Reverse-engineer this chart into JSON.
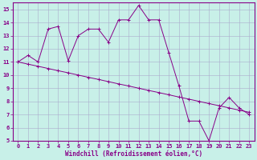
{
  "xlabel": "Windchill (Refroidissement éolien,°C)",
  "ylabel": "",
  "background_color": "#c8f0e8",
  "grid_color": "#aaaacc",
  "line_color": "#880088",
  "xlim": [
    -0.5,
    23.5
  ],
  "ylim": [
    5,
    15.5
  ],
  "xticks": [
    0,
    1,
    2,
    3,
    4,
    5,
    6,
    7,
    8,
    9,
    10,
    11,
    12,
    13,
    14,
    15,
    16,
    17,
    18,
    19,
    20,
    21,
    22,
    23
  ],
  "yticks": [
    5,
    6,
    7,
    8,
    9,
    10,
    11,
    12,
    13,
    14,
    15
  ],
  "curve1_x": [
    0,
    1,
    2,
    3,
    4,
    5,
    6,
    7,
    8,
    9,
    10,
    11,
    12,
    13,
    14,
    15,
    16,
    17,
    18,
    19,
    20,
    21,
    22,
    23
  ],
  "curve1_y": [
    11.0,
    11.5,
    11.0,
    13.5,
    13.7,
    11.1,
    13.0,
    13.5,
    13.5,
    12.5,
    14.2,
    14.2,
    15.3,
    14.2,
    14.2,
    11.7,
    9.2,
    6.5,
    6.5,
    5.0,
    7.5,
    8.3,
    7.5,
    7.0
  ],
  "curve2_x": [
    0,
    1,
    2,
    3,
    4,
    5,
    6,
    7,
    8,
    9,
    10,
    11,
    12,
    13,
    14,
    15,
    16,
    17,
    18,
    19,
    20,
    21,
    22,
    23
  ],
  "curve2_y": [
    11.0,
    10.83,
    10.67,
    10.5,
    10.33,
    10.17,
    10.0,
    9.83,
    9.67,
    9.5,
    9.33,
    9.17,
    9.0,
    8.83,
    8.67,
    8.5,
    8.33,
    8.17,
    8.0,
    7.83,
    7.67,
    7.5,
    7.33,
    7.17
  ],
  "tick_fontsize": 5,
  "xlabel_fontsize": 5.5
}
